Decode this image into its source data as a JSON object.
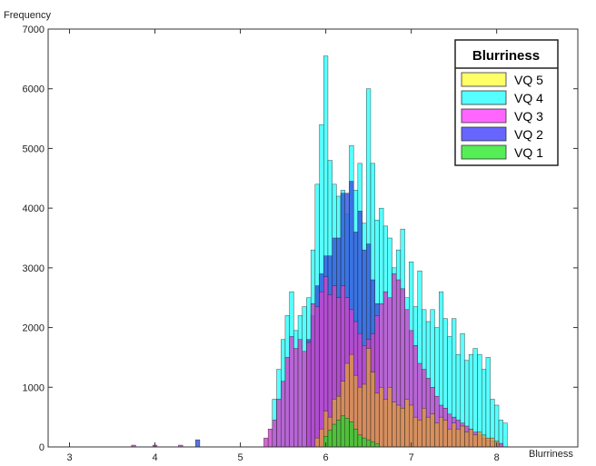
{
  "chart_data": {
    "type": "bar",
    "title": "",
    "xlabel": "Blurriness",
    "ylabel": "Frequency",
    "xlim": [
      2.75,
      8.95
    ],
    "ylim": [
      0,
      7000
    ],
    "xticks": [
      3,
      4,
      5,
      6,
      7,
      8
    ],
    "yticks": [
      0,
      1000,
      2000,
      3000,
      4000,
      5000,
      6000,
      7000
    ],
    "bin_width": 0.05,
    "legend": {
      "title": "Blurriness",
      "position": "top-right",
      "entries": [
        "VQ 5",
        "VQ 4",
        "VQ 3",
        "VQ 2",
        "VQ 1"
      ]
    },
    "grid": false,
    "overlay": true,
    "series": [
      {
        "name": "VQ 4",
        "color": "#33ffff",
        "x": [
          5.4,
          5.45,
          5.5,
          5.55,
          5.6,
          5.65,
          5.7,
          5.75,
          5.8,
          5.85,
          5.9,
          5.95,
          6.0,
          6.05,
          6.1,
          6.15,
          6.2,
          6.25,
          6.3,
          6.35,
          6.4,
          6.45,
          6.5,
          6.55,
          6.6,
          6.65,
          6.7,
          6.75,
          6.8,
          6.85,
          6.9,
          6.95,
          7.0,
          7.05,
          7.1,
          7.15,
          7.2,
          7.25,
          7.3,
          7.35,
          7.4,
          7.45,
          7.5,
          7.55,
          7.6,
          7.65,
          7.7,
          7.75,
          7.8,
          7.85,
          7.9,
          7.95,
          8.0,
          8.05,
          8.1
        ],
        "values": [
          800,
          1300,
          1800,
          2200,
          2600,
          1950,
          2200,
          2350,
          2500,
          3300,
          4400,
          5400,
          6550,
          4800,
          4400,
          4200,
          4300,
          3900,
          5050,
          4300,
          4750,
          3750,
          6000,
          4750,
          3800,
          4000,
          3700,
          3500,
          3000,
          3300,
          3650,
          2500,
          3100,
          2350,
          2950,
          2300,
          2100,
          2300,
          2000,
          2600,
          2150,
          1850,
          2150,
          1550,
          1900,
          1450,
          1550,
          1650,
          1550,
          1300,
          1500,
          800,
          700,
          450,
          400
        ]
      },
      {
        "name": "VQ 2",
        "color": "#3355dd",
        "x": [
          4.5,
          5.8,
          5.85,
          5.9,
          5.95,
          6.0,
          6.05,
          6.1,
          6.15,
          6.2,
          6.25,
          6.3,
          6.35,
          6.4,
          6.45,
          6.5,
          6.55,
          6.6
        ],
        "values": [
          120,
          1800,
          2200,
          2700,
          2900,
          3200,
          3200,
          3500,
          3500,
          4250,
          4250,
          4450,
          3600,
          3950,
          3300,
          3400,
          2800,
          2400
        ]
      },
      {
        "name": "VQ 3",
        "color": "#cc44cc",
        "x": [
          3.75,
          4.0,
          4.3,
          5.3,
          5.35,
          5.4,
          5.45,
          5.5,
          5.55,
          5.6,
          5.65,
          5.7,
          5.75,
          5.8,
          5.85,
          5.9,
          5.95,
          6.0,
          6.05,
          6.1,
          6.15,
          6.2,
          6.25,
          6.3,
          6.35,
          6.4,
          6.45,
          6.5,
          6.55,
          6.6,
          6.65,
          6.7,
          6.75,
          6.8,
          6.85,
          6.9,
          6.95,
          7.0,
          7.05,
          7.1,
          7.15,
          7.2,
          7.25,
          7.3,
          7.35,
          7.4,
          7.45,
          7.5,
          7.55,
          7.6,
          7.65,
          7.7,
          7.75,
          7.8,
          7.85,
          7.9,
          7.95,
          8.0,
          8.05
        ],
        "values": [
          30,
          30,
          30,
          150,
          300,
          450,
          800,
          1100,
          1500,
          1850,
          1650,
          1800,
          1600,
          1750,
          2400,
          2350,
          2600,
          2850,
          2550,
          2700,
          2500,
          2700,
          2500,
          2300,
          2100,
          1900,
          1700,
          1800,
          1900,
          2200,
          2400,
          2600,
          2500,
          2900,
          2800,
          2650,
          2300,
          1950,
          1700,
          1400,
          1300,
          1150,
          1000,
          850,
          700,
          650,
          550,
          500,
          450,
          400,
          350,
          300,
          250,
          200,
          150,
          120,
          100,
          80,
          60
        ]
      },
      {
        "name": "VQ 5",
        "color": "#dd9944",
        "x": [
          5.9,
          5.95,
          6.0,
          6.05,
          6.1,
          6.15,
          6.2,
          6.25,
          6.3,
          6.35,
          6.4,
          6.45,
          6.5,
          6.55,
          6.6,
          6.65,
          6.7,
          6.75,
          6.8,
          6.85,
          6.9,
          6.95,
          7.0,
          7.05,
          7.1,
          7.15,
          7.2,
          7.25,
          7.3,
          7.35,
          7.4,
          7.45,
          7.5,
          7.55,
          7.6,
          7.65,
          7.7,
          7.75,
          7.8,
          7.85,
          7.9,
          7.95,
          8.0
        ],
        "values": [
          150,
          300,
          600,
          500,
          800,
          850,
          1100,
          1400,
          1550,
          1200,
          1000,
          1050,
          1650,
          1250,
          900,
          1000,
          800,
          1000,
          750,
          700,
          650,
          800,
          700,
          500,
          450,
          650,
          500,
          550,
          400,
          500,
          450,
          300,
          400,
          300,
          350,
          250,
          300,
          200,
          250,
          200,
          150,
          150,
          100
        ]
      },
      {
        "name": "VQ 1",
        "color": "#33cc33",
        "x": [
          6.0,
          6.05,
          6.1,
          6.15,
          6.2,
          6.25,
          6.3,
          6.35,
          6.4,
          6.45,
          6.5,
          6.55,
          6.6
        ],
        "values": [
          180,
          280,
          380,
          450,
          520,
          480,
          420,
          300,
          200,
          150,
          120,
          80,
          50
        ]
      }
    ]
  }
}
